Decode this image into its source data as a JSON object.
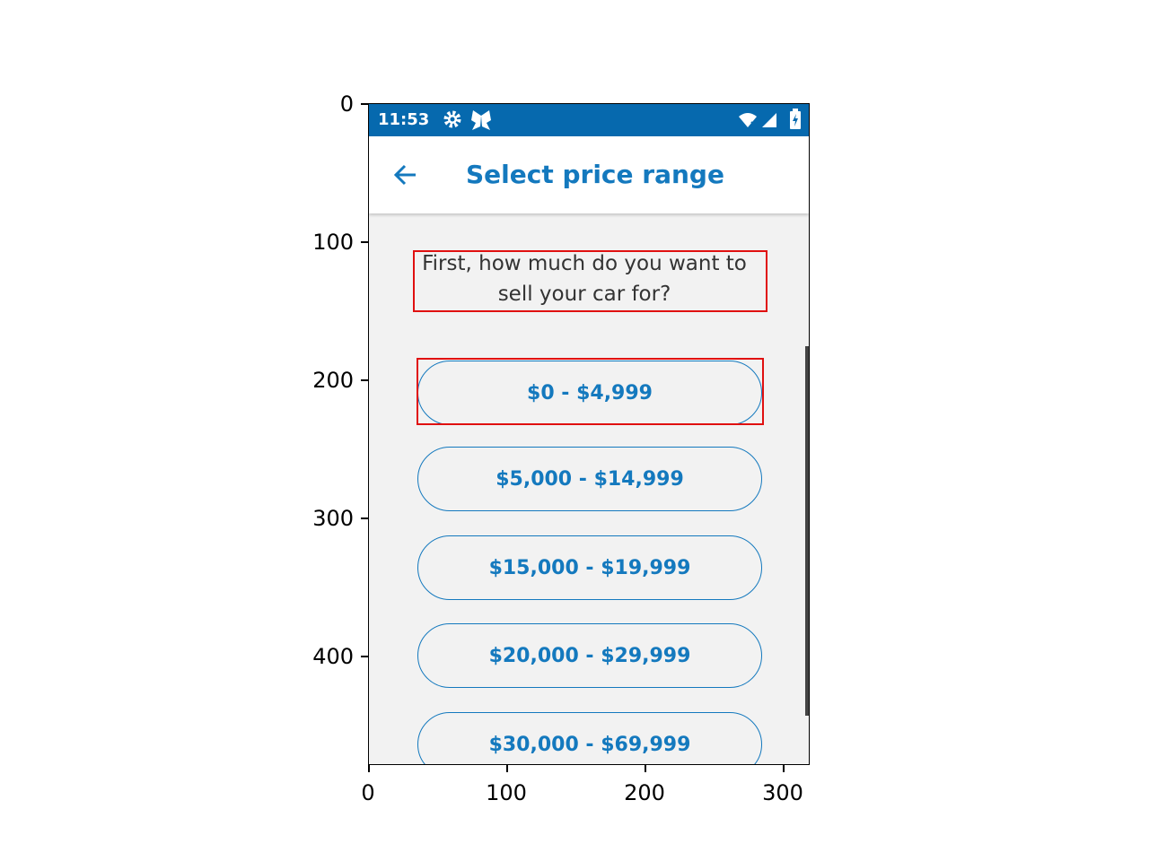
{
  "status_bar": {
    "time": "11:53"
  },
  "app_bar": {
    "title": "Select price range"
  },
  "question": "First, how much do you want to sell your car for?",
  "price_options": [
    "$0 - $4,999",
    "$5,000 - $14,999",
    "$15,000 - $19,999",
    "$20,000 - $29,999",
    "$30,000 - $69,999"
  ],
  "axes": {
    "y_ticks": [
      "0",
      "100",
      "200",
      "300",
      "400"
    ],
    "x_ticks": [
      "0",
      "100",
      "200",
      "300"
    ]
  },
  "colors": {
    "status_bar": "#0669ae",
    "accent": "#1479be",
    "background": "#f2f2f2",
    "annotation": "#e01010"
  },
  "icons": [
    "gear-icon",
    "butterfly-icon",
    "wifi-icon",
    "signal-icon",
    "battery-icon",
    "back-arrow-icon"
  ]
}
